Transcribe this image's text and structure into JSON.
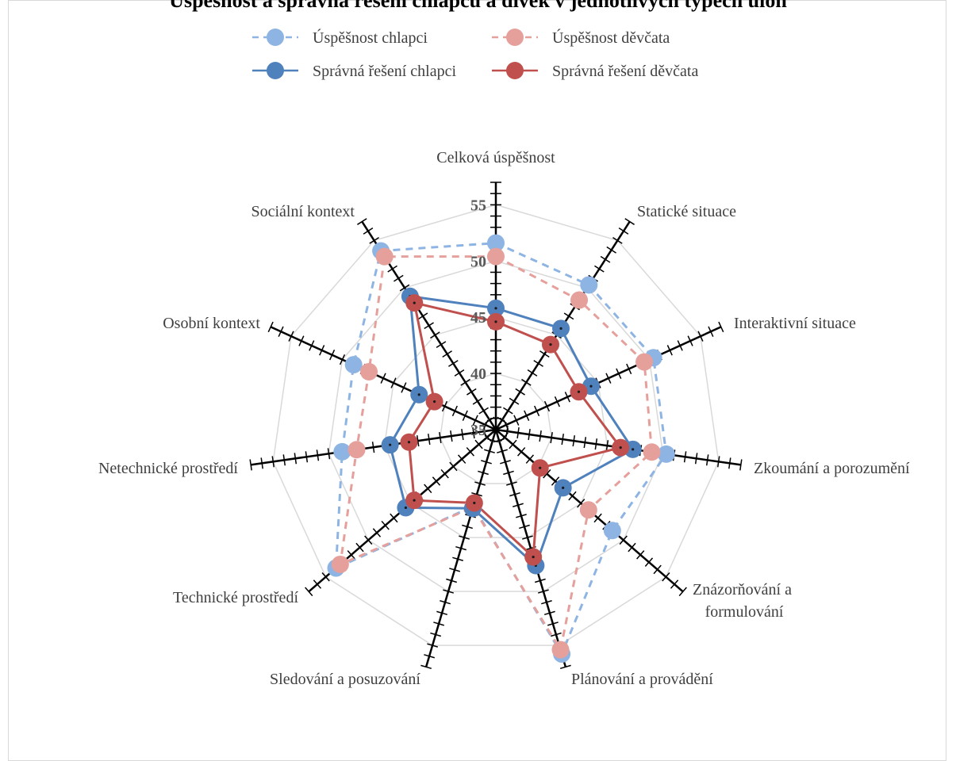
{
  "title": "Úspěšnost a správná řešení chlapců a dívek v jednotlivých typech úloh",
  "legend": [
    {
      "label": "Úspěšnost chlapci"
    },
    {
      "label": "Úspěšnost děvčata"
    },
    {
      "label": "Správná řešení chlapci"
    },
    {
      "label": "Správná řešení děvčata"
    }
  ],
  "chart_data": {
    "type": "radar",
    "title": "Úspěšnost a správná řešení chlapců a dívek v jednotlivých typech úloh",
    "categories": [
      "Celková úspěšnost",
      "Statické situace",
      "Interaktivní situace",
      "Zkoumání a porozumění",
      "Znázorňování a formulování",
      "Plánování a provádění",
      "Sledování a posuzování",
      "Technické prostředí",
      "Netechnické prostředí",
      "Osobní kontext",
      "Sociální kontext"
    ],
    "category_label_lines": [
      [
        "Celková úspěšnost"
      ],
      [
        "Statické situace"
      ],
      [
        "Interaktivní situace"
      ],
      [
        "Zkoumání a porozumění"
      ],
      [
        "Znázorňování a",
        "formulování"
      ],
      [
        "Plánování a provádění"
      ],
      [
        "Sledování a posuzování"
      ],
      [
        "Technické prostředí"
      ],
      [
        "Netechnické prostředí"
      ],
      [
        "Osobní kontext"
      ],
      [
        "Sociální kontext"
      ]
    ],
    "series": [
      {
        "name": "Úspěšnost chlapci",
        "color": "#8eb4e3",
        "dashed": true,
        "values": [
          51.6,
          50.3,
          50.4,
          50.3,
          48.7,
          55.8,
          42.1,
          53.8,
          48.8,
          48.9,
          53.9
        ]
      },
      {
        "name": "Úspěšnost děvčata",
        "color": "#e6a09c",
        "dashed": true,
        "values": [
          50.4,
          48.7,
          49.5,
          49.0,
          45.9,
          55.4,
          42.2,
          53.3,
          47.5,
          47.4,
          53.3
        ]
      },
      {
        "name": "Správná řešení chlapci",
        "color": "#4f81bd",
        "dashed": false,
        "values": [
          45.8,
          45.7,
          44.3,
          47.3,
          42.9,
          47.6,
          42.3,
          45.6,
          44.5,
          42.5,
          49.1
        ]
      },
      {
        "name": "Správná řešení děvčata",
        "color": "#c0504d",
        "dashed": false,
        "values": [
          44.6,
          44.0,
          43.1,
          46.2,
          40.2,
          46.8,
          41.8,
          44.6,
          42.8,
          41.0,
          48.4
        ]
      }
    ],
    "rlim": [
      35,
      57
    ],
    "ticks": [
      35,
      40,
      45,
      50,
      55
    ],
    "grid": true,
    "legend_position": "top"
  }
}
